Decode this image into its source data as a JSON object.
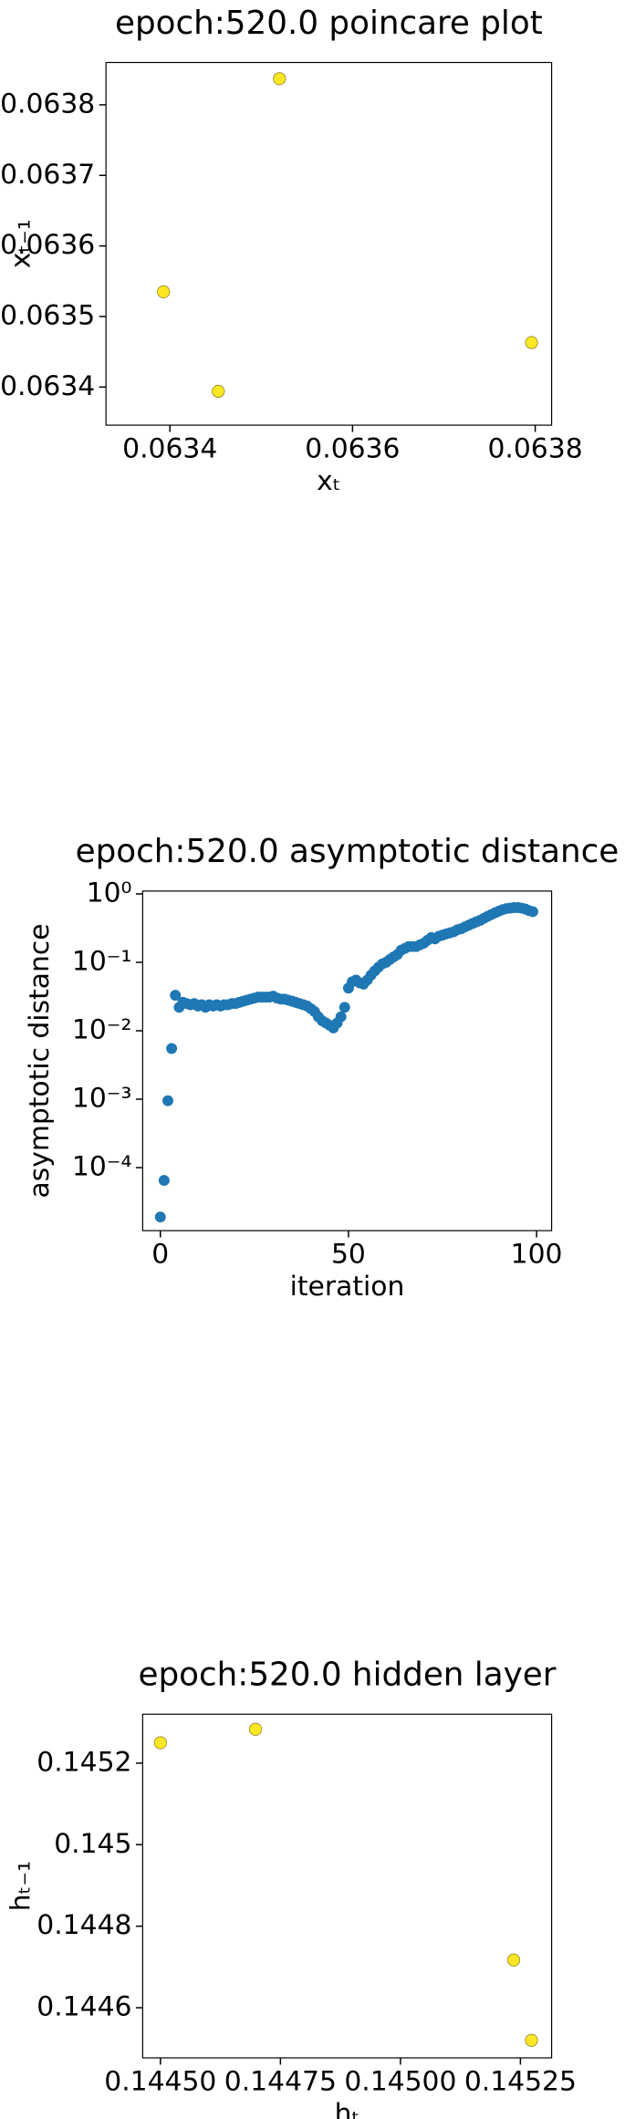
{
  "chart_data": [
    {
      "type": "scatter",
      "title": "epoch:520.0 poincare plot",
      "xlabel": "xₜ",
      "ylabel": "xₜ₋₁",
      "x": [
        0.063393,
        0.063453,
        0.06352,
        0.063796
      ],
      "series": [
        {
          "color": "#fde725",
          "values": [
            0.063535,
            0.063394,
            0.063837,
            0.063463
          ]
        }
      ],
      "xlim": [
        0.06333,
        0.063818
      ],
      "xticks": [
        0.0634,
        0.0636,
        0.0638
      ],
      "ylim": [
        0.063346,
        0.06386
      ],
      "yticks": [
        0.0634,
        0.0635,
        0.0636,
        0.0637,
        0.0638
      ]
    },
    {
      "type": "scatter",
      "title": "epoch:520.0 asymptotic distance",
      "xlabel": "iteration",
      "ylabel": "asymptotic distance",
      "log_y": true,
      "x": [
        0,
        1,
        2,
        3,
        4,
        5,
        6,
        7,
        8,
        9,
        10,
        11,
        12,
        13,
        14,
        15,
        16,
        17,
        18,
        19,
        20,
        21,
        22,
        23,
        24,
        25,
        26,
        27,
        28,
        29,
        30,
        31,
        32,
        33,
        34,
        35,
        36,
        37,
        38,
        39,
        40,
        41,
        42,
        43,
        44,
        45,
        46,
        47,
        48,
        49,
        50,
        51,
        52,
        53,
        54,
        55,
        56,
        57,
        58,
        59,
        60,
        61,
        62,
        63,
        64,
        65,
        66,
        67,
        68,
        69,
        70,
        71,
        72,
        73,
        74,
        75,
        76,
        77,
        78,
        79,
        80,
        81,
        82,
        83,
        84,
        85,
        86,
        87,
        88,
        89,
        90,
        91,
        92,
        93,
        94,
        95,
        96,
        97,
        98,
        99
      ],
      "series": [
        {
          "color": "#1f77b4",
          "values": [
            1.9e-05,
            6.5e-05,
            0.00095,
            0.0055,
            0.033,
            0.022,
            0.026,
            0.025,
            0.024,
            0.025,
            0.023,
            0.024,
            0.022,
            0.024,
            0.023,
            0.024,
            0.023,
            0.024,
            0.024,
            0.025,
            0.025,
            0.026,
            0.027,
            0.028,
            0.029,
            0.03,
            0.031,
            0.031,
            0.031,
            0.031,
            0.032,
            0.03,
            0.029,
            0.029,
            0.028,
            0.027,
            0.026,
            0.025,
            0.024,
            0.023,
            0.021,
            0.019,
            0.016,
            0.014,
            0.013,
            0.012,
            0.011,
            0.013,
            0.016,
            0.022,
            0.042,
            0.052,
            0.055,
            0.05,
            0.048,
            0.055,
            0.065,
            0.075,
            0.085,
            0.095,
            0.1,
            0.11,
            0.12,
            0.13,
            0.15,
            0.16,
            0.17,
            0.17,
            0.17,
            0.18,
            0.19,
            0.21,
            0.23,
            0.22,
            0.24,
            0.25,
            0.26,
            0.27,
            0.28,
            0.3,
            0.31,
            0.33,
            0.35,
            0.37,
            0.39,
            0.41,
            0.44,
            0.47,
            0.5,
            0.53,
            0.56,
            0.59,
            0.61,
            0.62,
            0.63,
            0.63,
            0.62,
            0.6,
            0.57,
            0.55
          ]
        }
      ],
      "xlim": [
        -4.7,
        104
      ],
      "xticks": [
        0,
        50,
        100
      ],
      "ylim": [
        1.2e-05,
        1.1
      ],
      "yticks": [
        {
          "value": 0.0001,
          "label": "10⁻⁴"
        },
        {
          "value": 0.001,
          "label": "10⁻³"
        },
        {
          "value": 0.01,
          "label": "10⁻²"
        },
        {
          "value": 0.1,
          "label": "10⁻¹"
        },
        {
          "value": 1,
          "label": "10⁰"
        }
      ]
    },
    {
      "type": "scatter",
      "title": "epoch:520.0 hidden layer",
      "xlabel": "hₜ",
      "ylabel": "hₜ₋₁",
      "x": [
        0.1445,
        0.144698,
        0.145236,
        0.145273
      ],
      "series": [
        {
          "color": "#fde725",
          "values": [
            0.14525,
            0.145283,
            0.144717,
            0.14452
          ]
        }
      ],
      "xlim": [
        0.144463,
        0.145315
      ],
      "xticks": [
        {
          "value": 0.1445,
          "label": "0.14450"
        },
        {
          "value": 0.14475,
          "label": "0.14475"
        },
        {
          "value": 0.145,
          "label": "0.14500"
        },
        {
          "value": 0.14525,
          "label": "0.14525"
        }
      ],
      "ylim": [
        0.144477,
        0.14532
      ],
      "yticks": [
        0.1446,
        0.1448,
        0.145,
        0.1452
      ]
    }
  ]
}
